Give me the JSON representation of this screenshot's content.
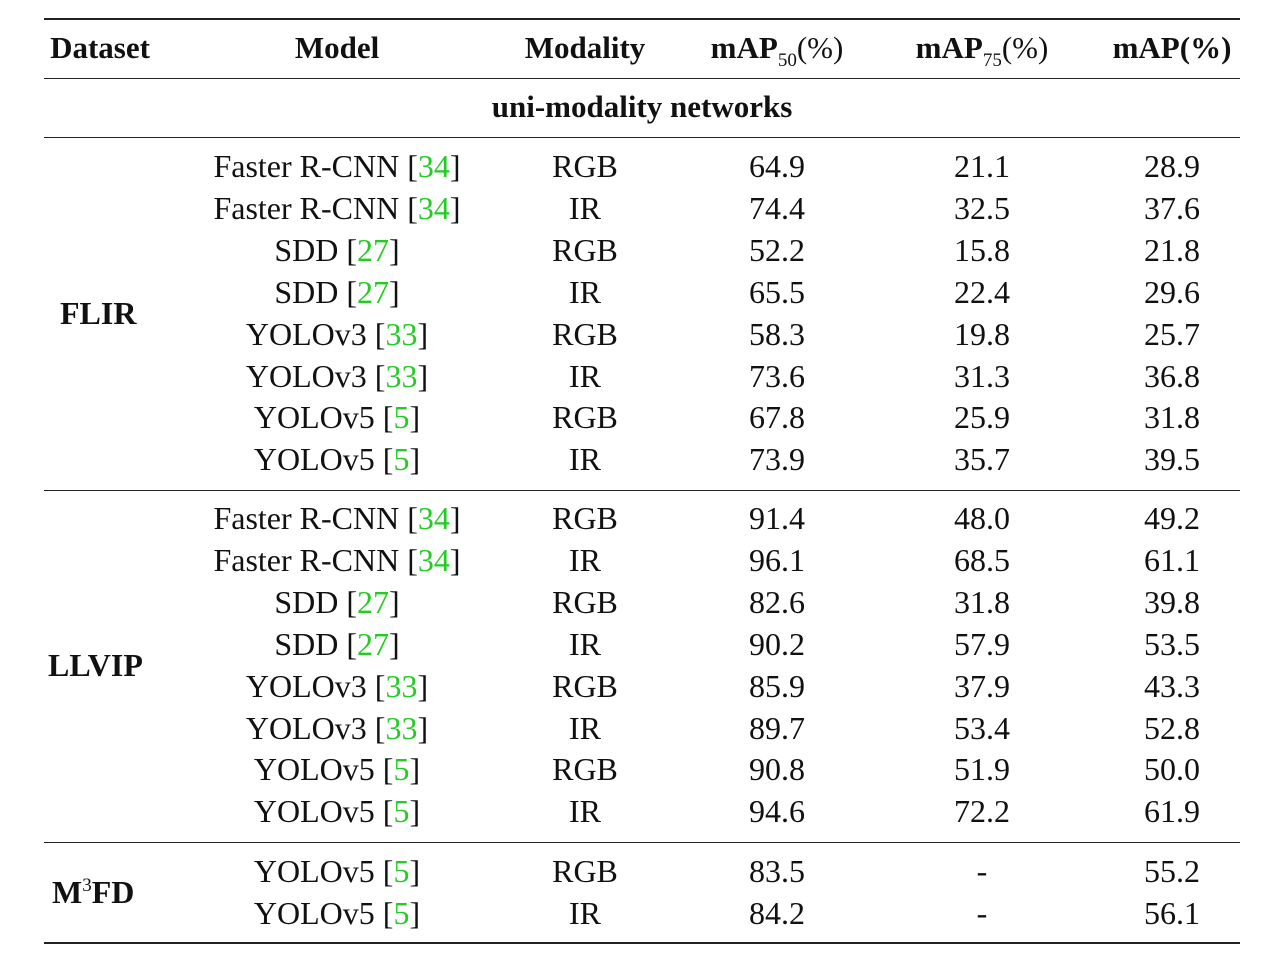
{
  "headers": {
    "dataset": "Dataset",
    "model": "Model",
    "modality": "Modality",
    "map50_prefix": "mAP",
    "map50_sub": "50",
    "map50_suffix": "(%)",
    "map75_prefix": "mAP",
    "map75_sub": "75",
    "map75_suffix": "(%)",
    "map": "mAP(%)"
  },
  "section_title": "uni-modality networks",
  "groups": [
    {
      "dataset": "FLIR",
      "rows": [
        {
          "model": "Faster R-CNN",
          "cite": "34",
          "modality": "RGB",
          "map50": "64.9",
          "map75": "21.1",
          "map": "28.9"
        },
        {
          "model": "Faster R-CNN",
          "cite": "34",
          "modality": "IR",
          "map50": "74.4",
          "map75": "32.5",
          "map": "37.6"
        },
        {
          "model": "SDD",
          "cite": "27",
          "modality": "RGB",
          "map50": "52.2",
          "map75": "15.8",
          "map": "21.8"
        },
        {
          "model": "SDD",
          "cite": "27",
          "modality": "IR",
          "map50": "65.5",
          "map75": "22.4",
          "map": "29.6"
        },
        {
          "model": "YOLOv3",
          "cite": "33",
          "modality": "RGB",
          "map50": "58.3",
          "map75": "19.8",
          "map": "25.7"
        },
        {
          "model": "YOLOv3",
          "cite": "33",
          "modality": "IR",
          "map50": "73.6",
          "map75": "31.3",
          "map": "36.8"
        },
        {
          "model": "YOLOv5",
          "cite": "5",
          "modality": "RGB",
          "map50": "67.8",
          "map75": "25.9",
          "map": "31.8"
        },
        {
          "model": "YOLOv5",
          "cite": "5",
          "modality": "IR",
          "map50": "73.9",
          "map75": "35.7",
          "map": "39.5"
        }
      ]
    },
    {
      "dataset": "LLVIP",
      "rows": [
        {
          "model": "Faster R-CNN",
          "cite": "34",
          "modality": "RGB",
          "map50": "91.4",
          "map75": "48.0",
          "map": "49.2"
        },
        {
          "model": "Faster R-CNN",
          "cite": "34",
          "modality": "IR",
          "map50": "96.1",
          "map75": "68.5",
          "map": "61.1"
        },
        {
          "model": "SDD",
          "cite": "27",
          "modality": "RGB",
          "map50": "82.6",
          "map75": "31.8",
          "map": "39.8"
        },
        {
          "model": "SDD",
          "cite": "27",
          "modality": "IR",
          "map50": "90.2",
          "map75": "57.9",
          "map": "53.5"
        },
        {
          "model": "YOLOv3",
          "cite": "33",
          "modality": "RGB",
          "map50": "85.9",
          "map75": "37.9",
          "map": "43.3"
        },
        {
          "model": "YOLOv3",
          "cite": "33",
          "modality": "IR",
          "map50": "89.7",
          "map75": "53.4",
          "map": "52.8"
        },
        {
          "model": "YOLOv5",
          "cite": "5",
          "modality": "RGB",
          "map50": "90.8",
          "map75": "51.9",
          "map": "50.0"
        },
        {
          "model": "YOLOv5",
          "cite": "5",
          "modality": "IR",
          "map50": "94.6",
          "map75": "72.2",
          "map": "61.9"
        }
      ]
    },
    {
      "dataset": "M",
      "dataset_sup": "3",
      "dataset_suffix": "FD",
      "rows": [
        {
          "model": "YOLOv5",
          "cite": "5",
          "modality": "RGB",
          "map50": "83.5",
          "map75": "-",
          "map": "55.2"
        },
        {
          "model": "YOLOv5",
          "cite": "5",
          "modality": "IR",
          "map50": "84.2",
          "map75": "-",
          "map": "56.1"
        }
      ]
    }
  ]
}
